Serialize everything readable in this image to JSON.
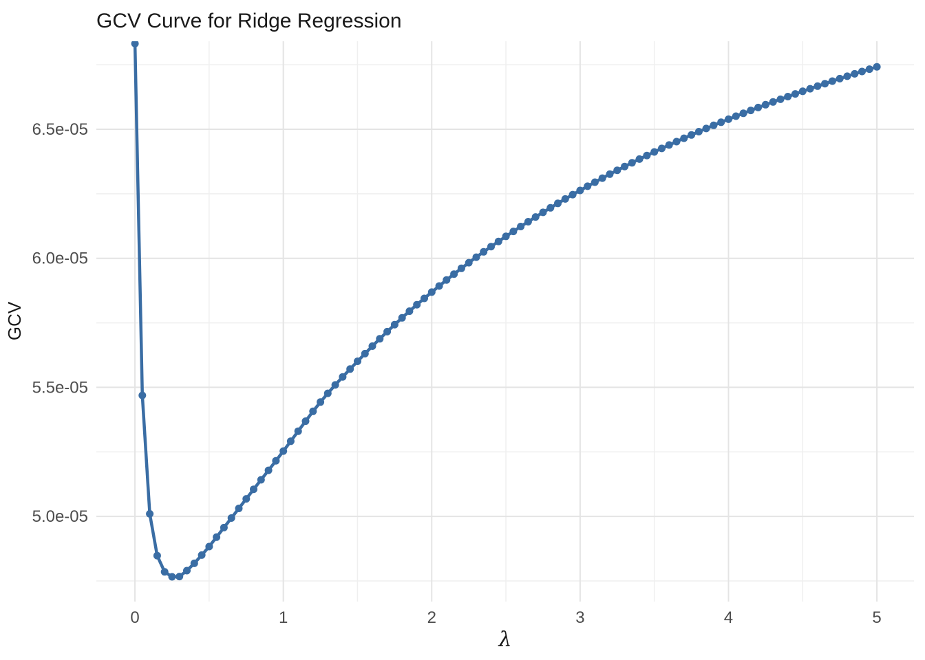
{
  "page": {
    "background": "#ffffff"
  },
  "chart_data": {
    "type": "line",
    "title": "GCV Curve for Ridge Regression",
    "xlabel": "λ",
    "ylabel": "GCV",
    "legend": "none",
    "grid": "on",
    "line_color": "#3A6DA4",
    "point_color": "#3A6DA4",
    "grid_major_color": "#E4E4E4",
    "grid_minor_color": "#EFEFEF",
    "axis_text_color": "#4D4D4D",
    "title_color": "#1A1A1A",
    "xlim": [
      -0.26,
      5.25
    ],
    "ylim": [
      4.67e-05,
      6.841e-05
    ],
    "x_major_ticks": [
      0,
      1,
      2,
      3,
      4,
      5
    ],
    "x_tick_labels": [
      "0",
      "1",
      "2",
      "3",
      "4",
      "5"
    ],
    "x_minor_ticks": [
      0.5,
      1.5,
      2.5,
      3.5,
      4.5
    ],
    "y_major_ticks": [
      5e-05,
      5.5e-05,
      6e-05,
      6.5e-05
    ],
    "y_tick_labels": [
      "5.0e-05",
      "5.5e-05",
      "6.0e-05",
      "6.5e-05"
    ],
    "y_minor_ticks": [
      4.75e-05,
      5.25e-05,
      5.75e-05,
      6.25e-05,
      6.75e-05
    ],
    "lambda_min": 0,
    "lambda_max": 5,
    "lambda_step": 0.05,
    "n_points": 101,
    "anchors": [
      [
        0.0,
        6.832e-05
      ],
      [
        0.05,
        5.469e-05
      ],
      [
        0.1,
        5.01e-05
      ],
      [
        0.15,
        4.848e-05
      ],
      [
        0.2,
        4.785e-05
      ],
      [
        0.25,
        4.766e-05
      ],
      [
        0.3,
        4.767e-05
      ],
      [
        0.35,
        4.79e-05
      ],
      [
        0.4,
        4.818e-05
      ],
      [
        0.45,
        4.85e-05
      ],
      [
        0.5,
        4.883e-05
      ],
      [
        0.75,
        5.068e-05
      ],
      [
        1.0,
        5.253e-05
      ],
      [
        1.25,
        5.443e-05
      ],
      [
        1.5,
        5.601e-05
      ],
      [
        1.75,
        5.743e-05
      ],
      [
        2.0,
        5.869e-05
      ],
      [
        2.25,
        5.983e-05
      ],
      [
        2.5,
        6.085e-05
      ],
      [
        2.75,
        6.178e-05
      ],
      [
        3.0,
        6.263e-05
      ],
      [
        3.25,
        6.341e-05
      ],
      [
        3.5,
        6.412e-05
      ],
      [
        3.75,
        6.478e-05
      ],
      [
        4.0,
        6.539e-05
      ],
      [
        4.25,
        6.595e-05
      ],
      [
        4.5,
        6.647e-05
      ],
      [
        4.75,
        6.696e-05
      ],
      [
        5.0,
        6.742e-05
      ]
    ],
    "min_point": {
      "lambda": 0.27,
      "gcv": 4.766e-05
    }
  }
}
